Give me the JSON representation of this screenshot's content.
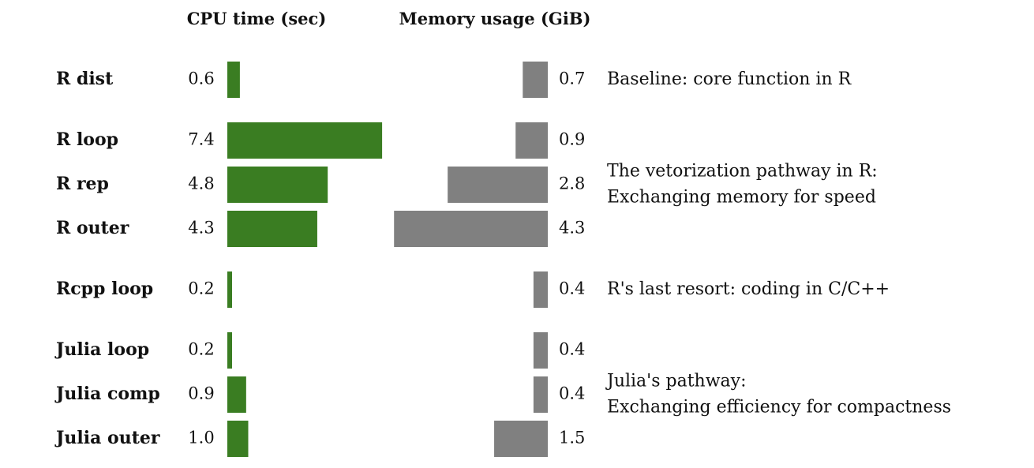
{
  "chart_data": {
    "type": "bar",
    "categories": [
      "R dist",
      "R loop",
      "R rep",
      "R outer",
      "Rcpp loop",
      "Julia loop",
      "Julia comp",
      "Julia outer"
    ],
    "series": [
      {
        "name": "CPU time (sec)",
        "values": [
          0.6,
          7.4,
          4.8,
          4.3,
          0.2,
          0.2,
          0.9,
          1.0
        ],
        "labels": [
          "0.6",
          "7.4",
          "4.8",
          "4.3",
          "0.2",
          "0.2",
          "0.9",
          "1.0"
        ],
        "color": "#3a7d22",
        "direction": "right"
      },
      {
        "name": "Memory usage (GiB)",
        "values": [
          0.7,
          0.9,
          2.8,
          4.3,
          0.4,
          0.4,
          0.4,
          1.5
        ],
        "labels": [
          "0.7",
          "0.9",
          "2.8",
          "4.3",
          "0.4",
          "0.4",
          "0.4",
          "1.5"
        ],
        "color": "#808080",
        "direction": "left"
      }
    ],
    "groups": [
      {
        "rows": [
          0
        ],
        "lines": [
          "Baseline: core function in R"
        ]
      },
      {
        "rows": [
          1,
          2,
          3
        ],
        "lines": [
          "The vetorization pathway in R:",
          "Exchanging memory for speed"
        ]
      },
      {
        "rows": [
          4
        ],
        "lines": [
          "R's last resort: coding in C/C++"
        ]
      },
      {
        "rows": [
          5,
          6,
          7
        ],
        "lines": [
          "Julia's pathway:",
          "Exchanging efficiency for compactness"
        ]
      }
    ],
    "grid": false,
    "legend": "none"
  }
}
